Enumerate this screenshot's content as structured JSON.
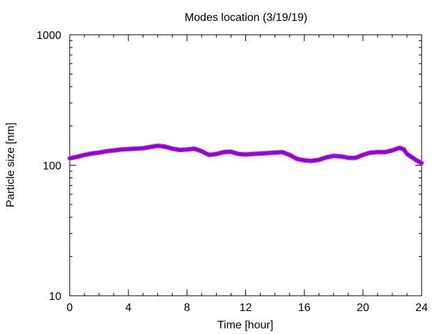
{
  "chart_data": {
    "type": "line",
    "title": "Modes location (3/19/19)",
    "xlabel": "Time [hour]",
    "ylabel": "Particle size [nm]",
    "xlim": [
      0,
      24
    ],
    "ylim": [
      10,
      1000
    ],
    "yscale": "log",
    "grid": false,
    "x_ticks": [
      0,
      4,
      8,
      12,
      16,
      20,
      24
    ],
    "x_tick_labels": [
      "0",
      "4",
      "8",
      "12",
      "16",
      "20",
      "24"
    ],
    "y_ticks": [
      10,
      100,
      1000
    ],
    "y_tick_labels": [
      "10",
      "100",
      "1000"
    ],
    "series": [
      {
        "color": "#9400d3",
        "x": [
          0,
          0.5,
          1,
          1.5,
          2,
          2.5,
          3,
          3.5,
          4,
          4.5,
          5,
          5.5,
          6,
          6.5,
          7,
          7.5,
          8,
          8.5,
          9,
          9.5,
          10,
          10.5,
          11,
          11.5,
          12,
          12.5,
          13,
          13.5,
          14,
          14.5,
          15,
          15.5,
          16,
          16.5,
          17,
          17.5,
          18,
          18.5,
          19,
          19.5,
          20,
          20.5,
          21,
          21.5,
          22,
          22.5,
          22.8,
          23,
          23.3,
          23.6,
          24
        ],
        "y": [
          113,
          116,
          120,
          123,
          125,
          128,
          130,
          132,
          133,
          134,
          135,
          138,
          141,
          139,
          134,
          131,
          132,
          134,
          128,
          120,
          122,
          126,
          127,
          122,
          121,
          122,
          123,
          124,
          125,
          126,
          120,
          112,
          109,
          108,
          110,
          115,
          118,
          117,
          114,
          114,
          120,
          125,
          126,
          126,
          130,
          136,
          132,
          122,
          116,
          110,
          104
        ]
      }
    ]
  }
}
